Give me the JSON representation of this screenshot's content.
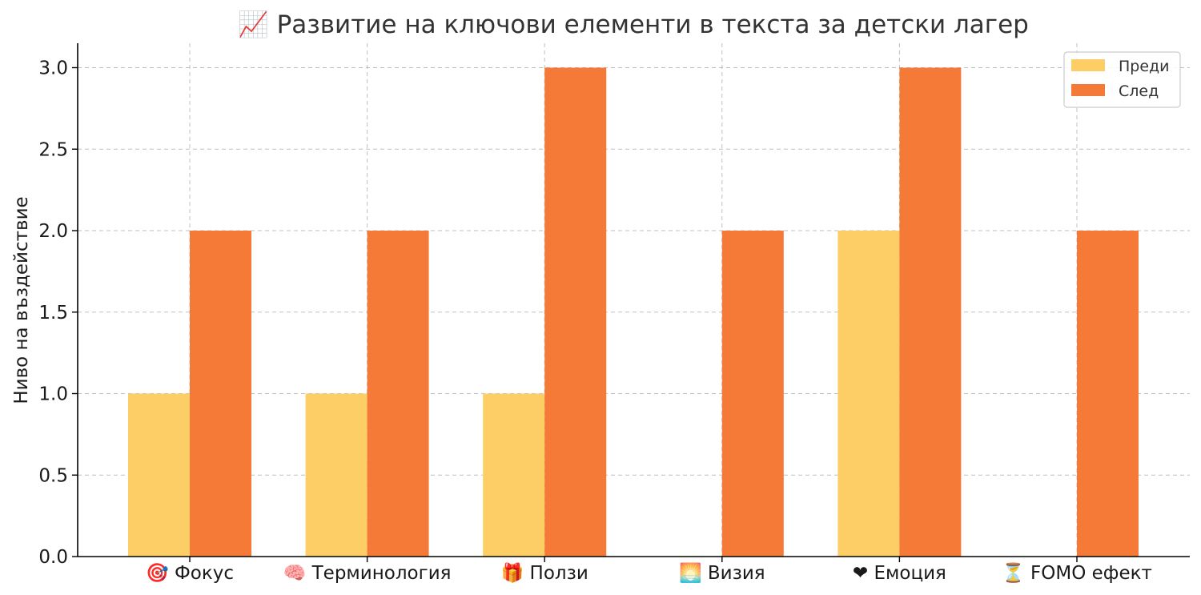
{
  "chart_data": {
    "type": "bar",
    "title": "📈 Развитие на ключови елементи в текста за детски лагер",
    "xlabel": "",
    "ylabel": "Ниво на въздействие",
    "ylim": [
      0,
      3.15
    ],
    "yticks": [
      0.0,
      0.5,
      1.0,
      1.5,
      2.0,
      2.5,
      3.0
    ],
    "ytick_labels": [
      "0.0",
      "0.5",
      "1.0",
      "1.5",
      "2.0",
      "2.5",
      "3.0"
    ],
    "grid": true,
    "legend_position": "top-right",
    "categories": [
      "🎯 Фокус",
      "🧠 Терминология",
      "🎁 Ползи",
      "🌅 Визия",
      "❤ Емоция",
      "⏳ FOMO ефект"
    ],
    "series": [
      {
        "name": "Преди",
        "color": "#FDCD66",
        "values": [
          1,
          1,
          1,
          0,
          2,
          0
        ]
      },
      {
        "name": "След",
        "color": "#F57A38",
        "values": [
          2,
          2,
          3,
          2,
          3,
          2
        ]
      }
    ]
  }
}
